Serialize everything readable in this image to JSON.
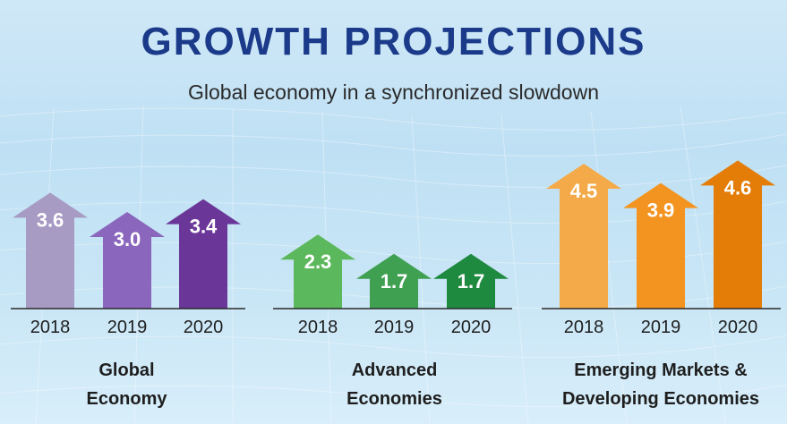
{
  "header": {
    "title": "GROWTH PROJECTIONS",
    "subtitle": "Global economy in a synchronized slowdown"
  },
  "chart_data": {
    "type": "bar",
    "title": "GROWTH PROJECTIONS",
    "subtitle": "Global economy in a synchronized slowdown",
    "categories": [
      "2018",
      "2019",
      "2020"
    ],
    "ylabel": "",
    "grid": false,
    "groups": [
      {
        "name_lines": [
          "Global",
          "Economy"
        ],
        "values": [
          3.6,
          3.0,
          3.4
        ],
        "value_labels": [
          "3.6",
          "3.0",
          "3.4"
        ],
        "colors": [
          "#a79bc4",
          "#8a66bd",
          "#6a3799"
        ]
      },
      {
        "name_lines": [
          "Advanced",
          "Economies"
        ],
        "values": [
          2.3,
          1.7,
          1.7
        ],
        "value_labels": [
          "2.3",
          "1.7",
          "1.7"
        ],
        "colors": [
          "#5cb85c",
          "#3fa052",
          "#1e8a3f"
        ]
      },
      {
        "name_lines": [
          "Emerging Markets &",
          "Developing Economies"
        ],
        "values": [
          4.5,
          3.9,
          4.6
        ],
        "value_labels": [
          "4.5",
          "3.9",
          "4.6"
        ],
        "colors": [
          "#f4aa48",
          "#f39420",
          "#e47d08"
        ]
      }
    ]
  }
}
